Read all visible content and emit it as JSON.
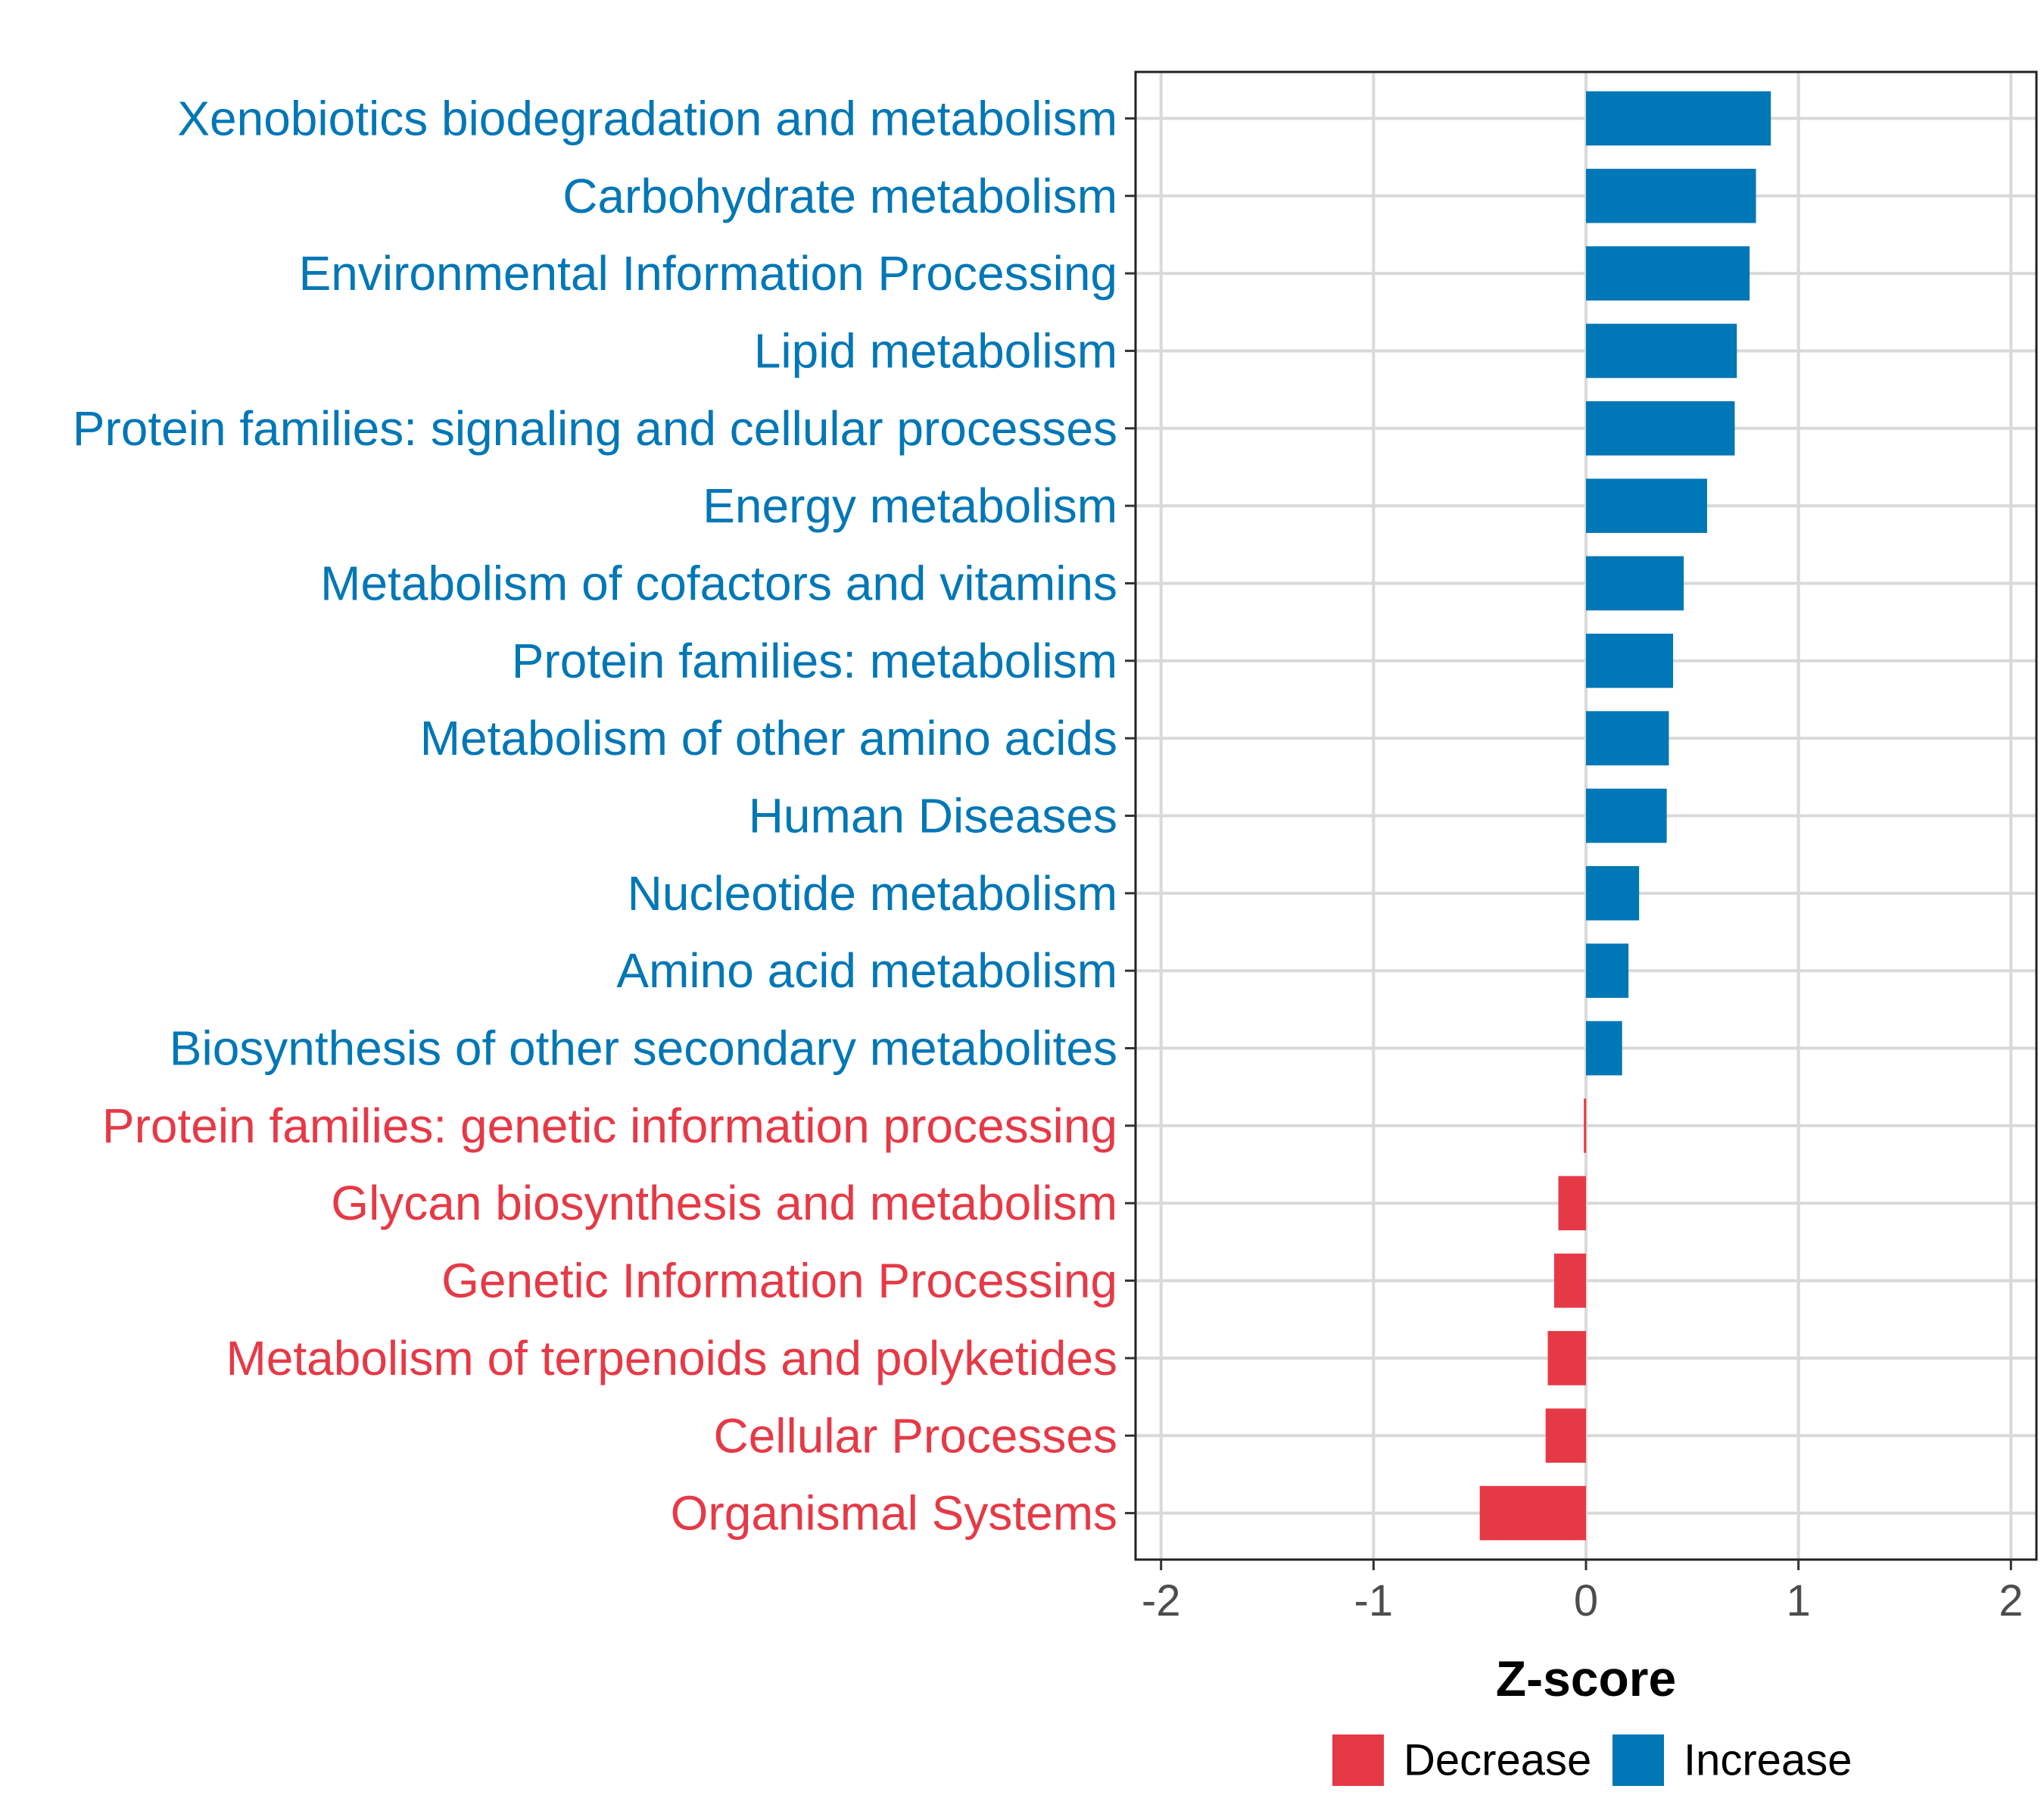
{
  "chart_data": {
    "type": "bar",
    "orientation": "horizontal",
    "xlabel": "Z-score",
    "xlim": [
      -2,
      2
    ],
    "xticks": [
      -2,
      -1,
      0,
      1,
      2
    ],
    "tick_labels": [
      "-2",
      "-1",
      "0",
      "1",
      "2"
    ],
    "grid": true,
    "legend_position": "bottom",
    "legend": [
      {
        "name": "Decrease",
        "color": "#e63946"
      },
      {
        "name": "Increase",
        "color": "#0077b6"
      }
    ],
    "categories": [
      "Xenobiotics biodegradation and metabolism",
      "Carbohydrate metabolism",
      "Environmental Information Processing",
      "Lipid metabolism",
      "Protein families: signaling and cellular processes",
      "Energy metabolism",
      "Metabolism of cofactors and vitamins",
      "Protein families: metabolism",
      "Metabolism of other amino acids",
      "Human Diseases",
      "Nucleotide metabolism",
      "Amino acid metabolism",
      "Biosynthesis of other secondary metabolites",
      "Protein families: genetic information processing",
      "Glycan biosynthesis and metabolism",
      "Genetic Information Processing",
      "Metabolism of terpenoids and polyketides",
      "Cellular Processes",
      "Organismal Systems"
    ],
    "values": [
      0.87,
      0.8,
      0.77,
      0.71,
      0.7,
      0.57,
      0.46,
      0.41,
      0.39,
      0.38,
      0.25,
      0.2,
      0.17,
      -0.01,
      -0.13,
      -0.15,
      -0.18,
      -0.19,
      -0.5
    ],
    "groups": [
      "Increase",
      "Increase",
      "Increase",
      "Increase",
      "Increase",
      "Increase",
      "Increase",
      "Increase",
      "Increase",
      "Increase",
      "Increase",
      "Increase",
      "Increase",
      "Decrease",
      "Decrease",
      "Decrease",
      "Decrease",
      "Decrease",
      "Decrease"
    ]
  }
}
